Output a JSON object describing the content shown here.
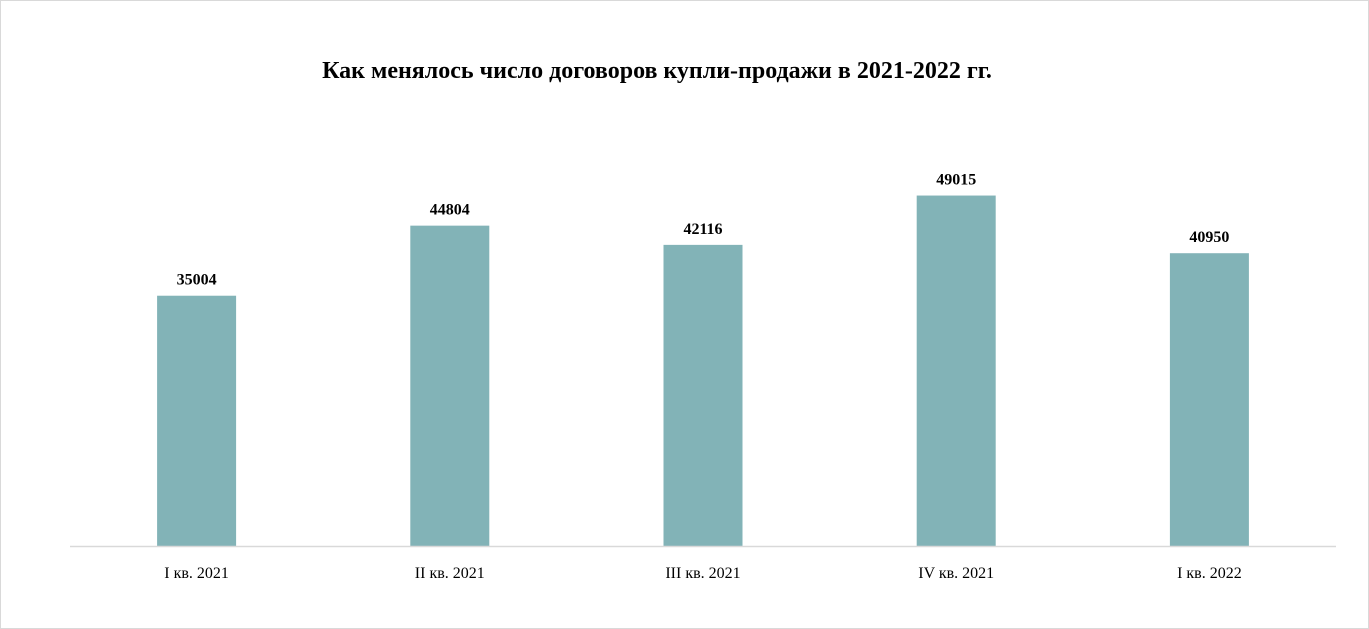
{
  "chart_data": {
    "type": "bar",
    "title": "Как менялось число договоров купли-продажи в 2021-2022 гг.",
    "categories": [
      "I кв. 2021",
      "II кв. 2021",
      "III кв. 2021",
      "IV кв. 2021",
      "I кв. 2022"
    ],
    "values": [
      35004,
      44804,
      42116,
      49015,
      40950
    ],
    "xlabel": "",
    "ylabel": "",
    "ylim": [
      0,
      60000
    ],
    "grid": false,
    "legend": "none",
    "bar_color": "#82B3B7"
  }
}
